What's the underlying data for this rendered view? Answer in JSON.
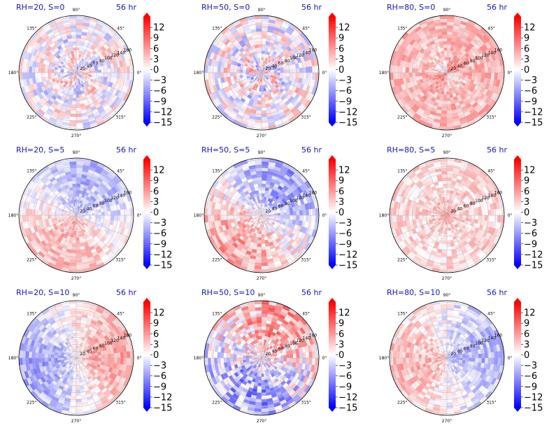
{
  "figure": {
    "panels": [
      {
        "title": "RH=20, S=0",
        "time": "56 hr"
      },
      {
        "title": "RH=50, S=0",
        "time": "56 hr"
      },
      {
        "title": "RH=80, S=0",
        "time": "56 hr"
      },
      {
        "title": "RH=20, S=5",
        "time": "56 hr"
      },
      {
        "title": "RH=50, S=5",
        "time": "56 hr"
      },
      {
        "title": "RH=80, S=5",
        "time": "56 hr"
      },
      {
        "title": "RH=20, S=10",
        "time": "56 hr"
      },
      {
        "title": "RH=50, S=10",
        "time": "56 hr"
      },
      {
        "title": "RH=80, S=10",
        "time": "56 hr"
      }
    ],
    "angle_labels": [
      "0°",
      "45°",
      "90°",
      "135°",
      "180°",
      "225°",
      "270°",
      "315°"
    ],
    "radial_labels": [
      "20",
      "40",
      "60",
      "80",
      "100",
      "120",
      "140",
      "160"
    ]
  },
  "chart_data": {
    "type": "heatmap",
    "projection": "polar",
    "layout": "3x3 grid",
    "radial_ticks": [
      20,
      40,
      60,
      80,
      100,
      120,
      140,
      160
    ],
    "angular_ticks_deg": [
      0,
      45,
      90,
      135,
      180,
      225,
      270,
      315
    ],
    "colorbar": {
      "ticks": [
        12,
        9,
        6,
        3,
        0,
        -3,
        -6,
        -9,
        -12,
        -15
      ],
      "range": [
        -15,
        15
      ],
      "colormap": "bwr",
      "extend": "both",
      "colors": {
        "min": "#0000ff",
        "mid": "#ffffff",
        "max": "#ff0000"
      }
    }
  }
}
